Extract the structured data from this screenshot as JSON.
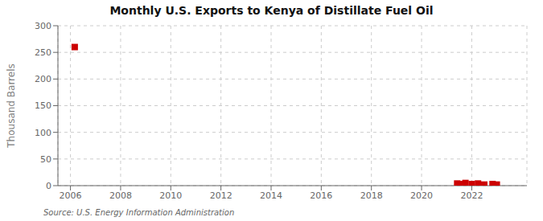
{
  "chart_data": {
    "type": "scatter",
    "title": "Monthly U.S. Exports to Kenya of Distillate Fuel Oil",
    "ylabel": "Thousand Barrels",
    "annotations": [
      "Source: U.S. Energy Information Administration"
    ],
    "x": [
      2006.17,
      2021.42,
      2021.58,
      2021.75,
      2022.0,
      2022.25,
      2022.5,
      2022.83,
      2023.0
    ],
    "values": [
      260,
      4,
      3,
      5,
      3,
      4,
      2,
      3,
      2
    ],
    "color": "#cc0000",
    "marker": "square",
    "xlim": [
      2005.5,
      2024.2
    ],
    "xticks": [
      2006,
      2008,
      2010,
      2012,
      2014,
      2016,
      2018,
      2020,
      2022
    ],
    "ylim": [
      0,
      300
    ],
    "yticks": [
      0,
      50,
      100,
      150,
      200,
      250,
      300
    ],
    "grid": true
  }
}
